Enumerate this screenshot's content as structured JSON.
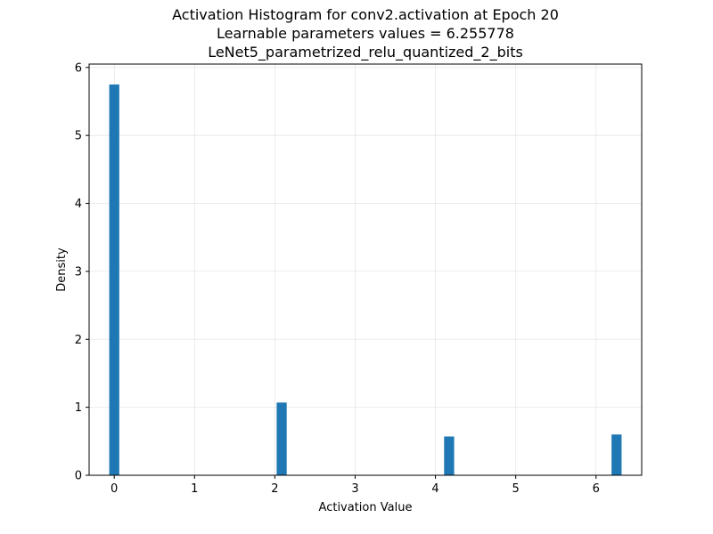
{
  "chart_data": {
    "type": "bar",
    "title": [
      "Activation Histogram for conv2.activation at Epoch 20",
      "Learnable parameters values = 6.255778",
      "LeNet5_parametrized_relu_quantized_2_bits"
    ],
    "xlabel": "Activation Value",
    "ylabel": "Density",
    "xlim": [
      -0.313,
      6.569
    ],
    "ylim": [
      0,
      6.05
    ],
    "xticks": [
      0,
      1,
      2,
      3,
      4,
      5,
      6
    ],
    "yticks": [
      0,
      1,
      2,
      3,
      4,
      5,
      6
    ],
    "grid": true,
    "bar_color": "#1f77b4",
    "bin_width": 0.12512,
    "bins": [
      {
        "x": 0.0,
        "value": 5.75
      },
      {
        "x": 2.0853,
        "value": 1.07
      },
      {
        "x": 4.1705,
        "value": 0.57
      },
      {
        "x": 6.2558,
        "value": 0.6
      }
    ]
  }
}
